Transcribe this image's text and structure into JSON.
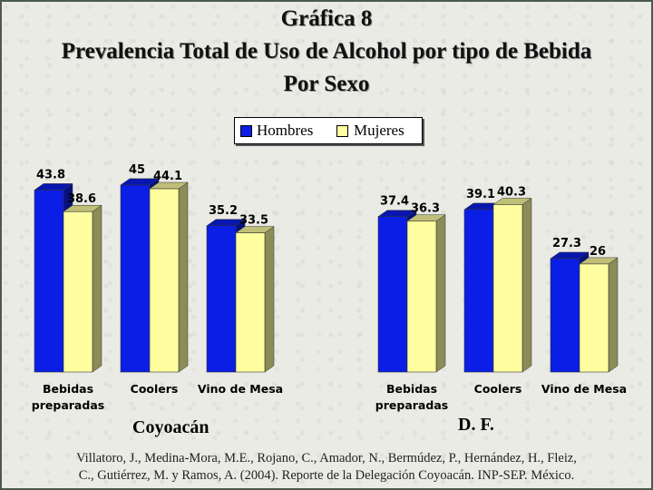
{
  "title": "Gráfica 8",
  "subtitle": "Prevalencia Total de Uso de Alcohol por tipo de Bebida",
  "subtitle2": "Por Sexo",
  "legend": {
    "hombres": "Hombres",
    "mujeres": "Mujeres"
  },
  "colors": {
    "hombres": "#0a1ee6",
    "mujeres": "#ffffa0"
  },
  "chart_data": [
    {
      "type": "bar",
      "group": "Coyoacán",
      "categories": [
        [
          "Bebidas",
          "preparadas"
        ],
        [
          "Coolers"
        ],
        [
          "Vino de Mesa"
        ]
      ],
      "series": [
        {
          "name": "Hombres",
          "values": [
            43.8,
            45,
            35.2
          ]
        },
        {
          "name": "Mujeres",
          "values": [
            38.6,
            44.1,
            33.5
          ]
        }
      ]
    },
    {
      "type": "bar",
      "group": "D. F.",
      "categories": [
        [
          "Bebidas",
          "preparadas"
        ],
        [
          "Coolers"
        ],
        [
          "Vino de Mesa"
        ]
      ],
      "series": [
        {
          "name": "Hombres",
          "values": [
            37.4,
            39.1,
            27.3
          ]
        },
        {
          "name": "Mujeres",
          "values": [
            36.3,
            40.3,
            26
          ]
        }
      ]
    }
  ],
  "group_labels": [
    "Coyoacán",
    "D. F."
  ],
  "source": {
    "line1": "Villatoro, J., Medina-Mora, M.E., Rojano, C., Amador, N., Bermúdez, P., Hernández, H., Fleiz,",
    "line2": "C., Gutiérrez, M. y Ramos, A. (2004). Reporte de la Delegación Coyoacán. INP-SEP. México."
  }
}
